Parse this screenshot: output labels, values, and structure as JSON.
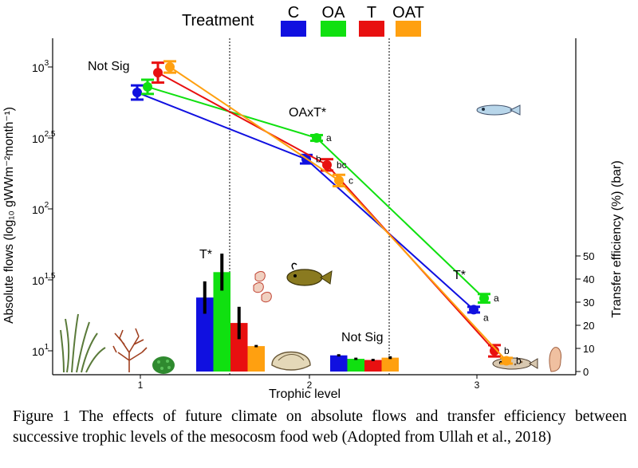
{
  "chart_data": {
    "type": "line",
    "legend": {
      "title": "Treatment",
      "position": "top",
      "entries": [
        {
          "name": "C",
          "color": "#1010e0"
        },
        {
          "name": "OA",
          "color": "#10e010"
        },
        {
          "name": "T",
          "color": "#e81010"
        },
        {
          "name": "OAT",
          "color": "#ffa010"
        }
      ]
    },
    "xlabel": "Trophic level",
    "ylabel": "Absolute flows (log₁₀ gWWm⁻²month⁻¹)",
    "y2label": "Transfer efficiency (%) (bar)",
    "x_ticks": [
      "1",
      "2",
      "3"
    ],
    "y_ticks": [
      {
        "value": 1,
        "label": "10",
        "exp": "1"
      },
      {
        "value": 1.5,
        "label": "10",
        "exp": "1.5"
      },
      {
        "value": 2,
        "label": "10",
        "exp": "2"
      },
      {
        "value": 2.5,
        "label": "10",
        "exp": "2.5"
      },
      {
        "value": 3,
        "label": "10",
        "exp": "3"
      }
    ],
    "y2_ticks": [
      "0",
      "10",
      "20",
      "30",
      "40",
      "50"
    ],
    "ylim": [
      0.9,
      3.1
    ],
    "y2lim": [
      0,
      55
    ],
    "y_scale": "log",
    "series": [
      {
        "name": "C",
        "color": "#1010e0",
        "x": [
          1,
          2,
          3
        ],
        "y": [
          2.82,
          2.35,
          1.29
        ],
        "err": [
          0.05,
          0.03,
          0.02
        ]
      },
      {
        "name": "OA",
        "color": "#10e010",
        "x": [
          1,
          2,
          3
        ],
        "y": [
          2.86,
          2.5,
          1.37
        ],
        "err": [
          0.05,
          0.02,
          0.03
        ]
      },
      {
        "name": "T",
        "color": "#e81010",
        "x": [
          1,
          2,
          3
        ],
        "y": [
          2.96,
          2.31,
          1.0
        ],
        "err": [
          0.07,
          0.04,
          0.04
        ]
      },
      {
        "name": "OAT",
        "color": "#ffa010",
        "x": [
          1,
          2,
          3
        ],
        "y": [
          3.0,
          2.2,
          0.93
        ],
        "err": [
          0.04,
          0.04,
          0.02
        ]
      }
    ],
    "bars": [
      {
        "group": "1→2",
        "values": [
          32,
          43,
          21,
          11
        ],
        "err": [
          7,
          8,
          7,
          0.5
        ]
      },
      {
        "group": "2→3",
        "values": [
          7,
          5.5,
          5,
          6
        ],
        "err": [
          0.5,
          0.5,
          0.5,
          0.6
        ]
      }
    ],
    "annotations": {
      "tl1": "Not Sig",
      "tl2": "OAxT*",
      "tl3": "T*",
      "bar1": "T*",
      "bar2": "Not Sig",
      "tl2_letters": [
        "b",
        "a",
        "bc",
        "c"
      ],
      "tl3_letters": [
        "a",
        "a",
        "b",
        "b"
      ]
    }
  },
  "caption": "Figure 1 The effects of future climate on absolute flows and transfer efficiency between successive trophic levels of the mesocosm food web (Adopted from Ullah et al., 2018)"
}
